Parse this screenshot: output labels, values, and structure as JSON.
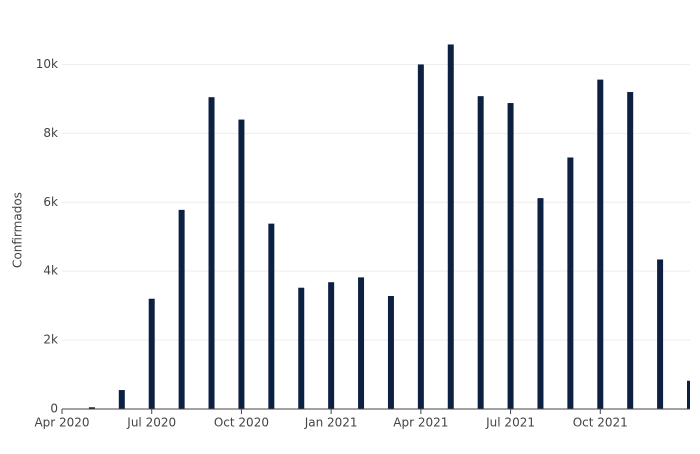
{
  "chart_data": {
    "type": "bar",
    "ylabel": "Confirmados",
    "x": [
      "2020-05",
      "2020-06",
      "2020-07",
      "2020-08",
      "2020-09",
      "2020-10",
      "2020-11",
      "2020-12",
      "2021-01",
      "2021-02",
      "2021-03",
      "2021-04",
      "2021-05",
      "2021-06",
      "2021-07",
      "2021-08",
      "2021-09",
      "2021-10",
      "2021-11",
      "2021-12",
      "2022-01"
    ],
    "values": [
      50,
      550,
      3200,
      5780,
      9050,
      8400,
      5380,
      3520,
      3680,
      3820,
      3280,
      10000,
      10580,
      9080,
      8880,
      6120,
      7300,
      9560,
      9200,
      4340,
      820
    ],
    "color": "#0c2141",
    "xlim": [
      "2020-04",
      "2022-01"
    ],
    "xticks": [
      {
        "value": "2020-04",
        "label": "Apr 2020"
      },
      {
        "value": "2020-07",
        "label": "Jul 2020"
      },
      {
        "value": "2020-10",
        "label": "Oct 2020"
      },
      {
        "value": "2021-01",
        "label": "Jan 2021"
      },
      {
        "value": "2021-04",
        "label": "Apr 2021"
      },
      {
        "value": "2021-07",
        "label": "Jul 2021"
      },
      {
        "value": "2021-10",
        "label": "Oct 2021"
      }
    ],
    "ylim": [
      0,
      11000
    ],
    "yticks": [
      0,
      {
        "value": 2000,
        "label": "2k"
      },
      {
        "value": 4000,
        "label": "4k"
      },
      {
        "value": 6000,
        "label": "6k"
      },
      {
        "value": 8000,
        "label": "8k"
      },
      {
        "value": 10000,
        "label": "10k"
      }
    ],
    "grid": true
  }
}
